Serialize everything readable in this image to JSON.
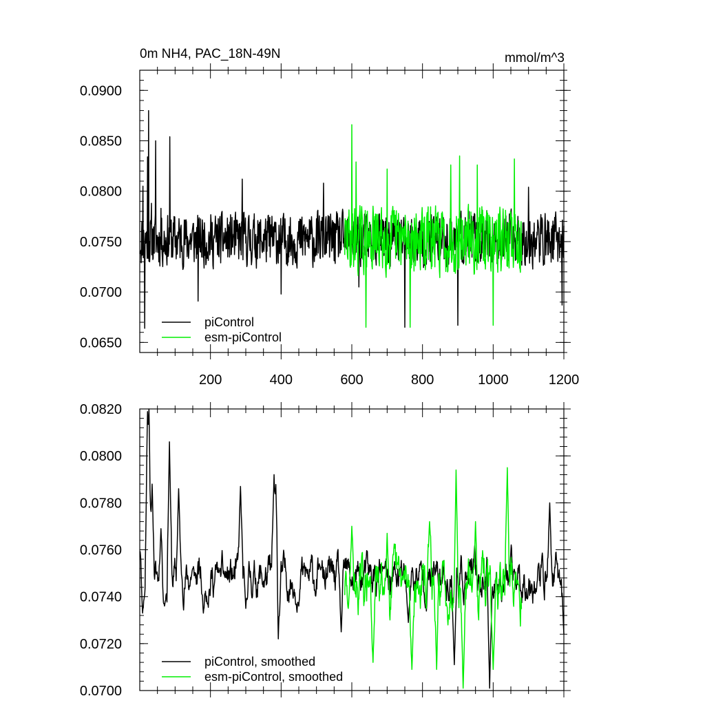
{
  "chart_data": [
    {
      "type": "line",
      "title": "0m NH4, PAC_18N-49N",
      "units": "mmol/m^3",
      "xlim": [
        0,
        1200
      ],
      "ylim": [
        0.064,
        0.092
      ],
      "xticks": [
        200,
        400,
        600,
        800,
        1000,
        1200
      ],
      "xtick_labels": [
        "200",
        "400",
        "600",
        "800",
        "1000",
        "1200"
      ],
      "yticks": [
        0.065,
        0.07,
        0.075,
        0.08,
        0.085,
        0.09
      ],
      "ytick_labels": [
        "0.0650",
        "0.0700",
        "0.0750",
        "0.0800",
        "0.0850",
        "0.0900"
      ],
      "legend_position": "bottom-left",
      "series": [
        {
          "name": "piControl",
          "color": "#000000",
          "x_range": [
            1,
            1200
          ],
          "mean": 0.0752,
          "amplitude": 0.0024,
          "min": 0.0664,
          "max": 0.088,
          "seed": 11,
          "peaks": [
            [
              9,
              0.0805
            ],
            [
              14,
              0.0664
            ],
            [
              22,
              0.0834
            ],
            [
              25,
              0.088
            ],
            [
              33,
              0.0788
            ],
            [
              45,
              0.085
            ],
            [
              60,
              0.0783
            ],
            [
              85,
              0.0854
            ],
            [
              165,
              0.0691
            ],
            [
              290,
              0.0812
            ],
            [
              400,
              0.0698
            ],
            [
              520,
              0.0808
            ],
            [
              620,
              0.0705
            ],
            [
              750,
              0.0665
            ],
            [
              900,
              0.0667
            ],
            [
              1100,
              0.0804
            ],
            [
              1195,
              0.0687
            ]
          ]
        },
        {
          "name": "esm-piControl",
          "color": "#00ee00",
          "x_range": [
            580,
            1080
          ],
          "mean": 0.0752,
          "amplitude": 0.003,
          "min": 0.0663,
          "max": 0.0866,
          "seed": 29,
          "peaks": [
            [
              600,
              0.0866
            ],
            [
              612,
              0.0829
            ],
            [
              640,
              0.0665
            ],
            [
              700,
              0.0822
            ],
            [
              765,
              0.0665
            ],
            [
              880,
              0.0826
            ],
            [
              905,
              0.0835
            ],
            [
              955,
              0.0826
            ],
            [
              1000,
              0.0667
            ],
            [
              1060,
              0.0832
            ]
          ]
        }
      ]
    },
    {
      "type": "line",
      "title": "",
      "xlim": [
        0,
        1200
      ],
      "ylim": [
        0.07,
        0.082
      ],
      "xticks": [
        200,
        400,
        600,
        800,
        1000,
        1200
      ],
      "yticks": [
        0.07,
        0.072,
        0.074,
        0.076,
        0.078,
        0.08,
        0.082
      ],
      "ytick_labels": [
        "0.0700",
        "0.0720",
        "0.0740",
        "0.0760",
        "0.0780",
        "0.0800",
        "0.0820"
      ],
      "legend_position": "bottom-left",
      "series": [
        {
          "name": "piControl, smoothed",
          "color": "#000000",
          "x_range": [
            1,
            1200
          ],
          "mean": 0.0748,
          "amplitude": 0.0009,
          "min": 0.0701,
          "max": 0.082,
          "seed": 11,
          "peaks": [
            [
              3,
              0.0765
            ],
            [
              8,
              0.0733
            ],
            [
              22,
              0.0818
            ],
            [
              26,
              0.082
            ],
            [
              35,
              0.0788
            ],
            [
              60,
              0.0769
            ],
            [
              70,
              0.0736
            ],
            [
              84,
              0.0806
            ],
            [
              110,
              0.0786
            ],
            [
              150,
              0.0752
            ],
            [
              180,
              0.0733
            ],
            [
              225,
              0.0751
            ],
            [
              285,
              0.0787
            ],
            [
              300,
              0.0735
            ],
            [
              380,
              0.0792
            ],
            [
              388,
              0.0803
            ],
            [
              392,
              0.0722
            ],
            [
              450,
              0.0736
            ],
            [
              510,
              0.0753
            ],
            [
              570,
              0.0725
            ],
            [
              690,
              0.0752
            ],
            [
              760,
              0.0729
            ],
            [
              890,
              0.0711
            ],
            [
              990,
              0.0701
            ],
            [
              1160,
              0.078
            ],
            [
              1200,
              0.0724
            ]
          ]
        },
        {
          "name": "esm-piControl, smoothed",
          "color": "#00ee00",
          "x_range": [
            580,
            1080
          ],
          "mean": 0.0744,
          "amplitude": 0.0012,
          "min": 0.0701,
          "max": 0.0796,
          "seed": 29,
          "peaks": [
            [
              590,
              0.0735
            ],
            [
              600,
              0.077
            ],
            [
              660,
              0.0712
            ],
            [
              700,
              0.0767
            ],
            [
              770,
              0.0709
            ],
            [
              820,
              0.0772
            ],
            [
              840,
              0.0709
            ],
            [
              895,
              0.0794
            ],
            [
              915,
              0.0701
            ],
            [
              950,
              0.0772
            ],
            [
              1000,
              0.0709
            ],
            [
              1040,
              0.0795
            ],
            [
              1070,
              0.0747
            ]
          ]
        }
      ]
    }
  ]
}
